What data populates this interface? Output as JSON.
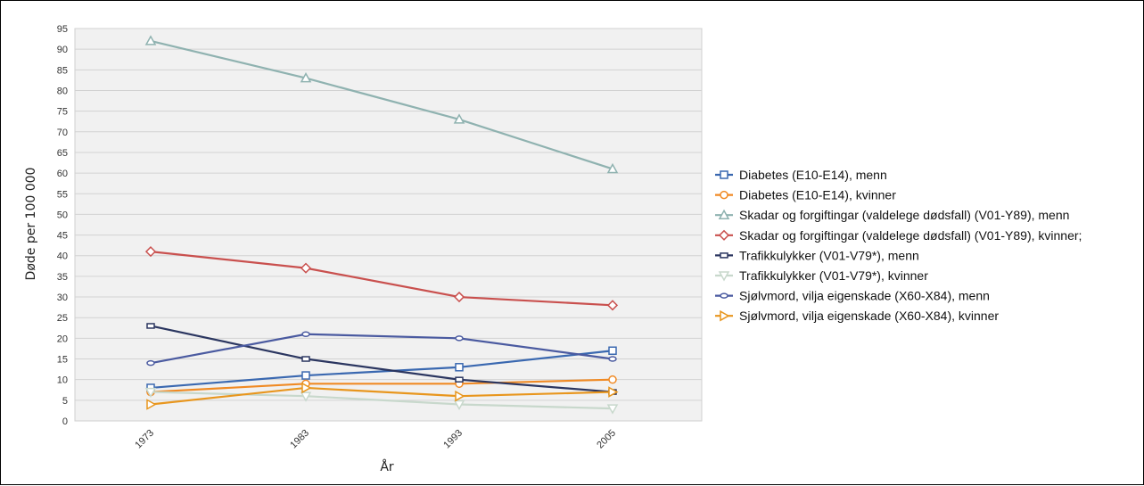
{
  "chart_data": {
    "type": "line",
    "title": "",
    "xlabel": "År",
    "ylabel": "Døde per 100 000",
    "categories": [
      "1973",
      "1983",
      "1993",
      "2005"
    ],
    "ylim": [
      0,
      95
    ],
    "yticks": [
      0,
      5,
      10,
      15,
      20,
      25,
      30,
      35,
      40,
      45,
      50,
      55,
      60,
      65,
      70,
      75,
      80,
      85,
      90,
      95
    ],
    "grid": true,
    "legend_position": "right",
    "series": [
      {
        "name": "Diabetes (E10-E14), menn",
        "values": [
          8,
          11,
          13,
          17
        ],
        "color": "#3a68b0",
        "marker": "square"
      },
      {
        "name": "Diabetes (E10-E14), kvinner",
        "values": [
          7,
          9,
          9,
          10
        ],
        "color": "#f08a24",
        "marker": "circle"
      },
      {
        "name": "Skadar og forgiftingar (valdelege dødsfall) (V01-Y89), menn",
        "values": [
          92,
          83,
          73,
          61
        ],
        "color": "#8fb2b0",
        "marker": "triangle"
      },
      {
        "name": "Skadar og forgiftingar (valdelege dødsfall) (V01-Y89), kvinner;",
        "values": [
          41,
          37,
          30,
          28
        ],
        "color": "#c9504e",
        "marker": "diamond"
      },
      {
        "name": "Trafikkulykker (V01-V79*), menn",
        "values": [
          23,
          15,
          10,
          7
        ],
        "color": "#2b3660",
        "marker": "rect"
      },
      {
        "name": "Trafikkulykker (V01-V79*), kvinner",
        "values": [
          7,
          6,
          4,
          3
        ],
        "color": "#c8d8cc",
        "marker": "triangle-down"
      },
      {
        "name": "Sjølvmord, vilja eigenskade (X60-X84), menn",
        "values": [
          14,
          21,
          20,
          15
        ],
        "color": "#4a5aa0",
        "marker": "ellipse"
      },
      {
        "name": "Sjølvmord, vilja eigenskade (X60-X84), kvinner",
        "values": [
          4,
          8,
          6,
          7
        ],
        "color": "#e8961e",
        "marker": "triangle-right"
      }
    ]
  }
}
